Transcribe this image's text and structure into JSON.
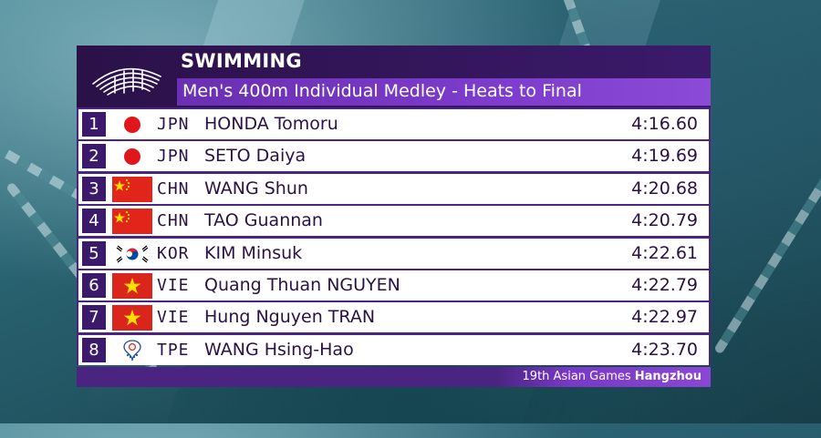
{
  "header": {
    "sport": "SWIMMING",
    "event": "Men's 400m Individual Medley - Heats to Final"
  },
  "results": [
    {
      "rank": "1",
      "flag": "japan-flag",
      "code": "JPN",
      "name": "HONDA Tomoru",
      "time": "4:16.60"
    },
    {
      "rank": "2",
      "flag": "japan-flag",
      "code": "JPN",
      "name": "SETO Daiya",
      "time": "4:19.69"
    },
    {
      "rank": "3",
      "flag": "china-flag",
      "code": "CHN",
      "name": "WANG Shun",
      "time": "4:20.68"
    },
    {
      "rank": "4",
      "flag": "china-flag",
      "code": "CHN",
      "name": "TAO Guannan",
      "time": "4:20.79"
    },
    {
      "rank": "5",
      "flag": "korea-flag",
      "code": "KOR",
      "name": "KIM Minsuk",
      "time": "4:22.61"
    },
    {
      "rank": "6",
      "flag": "vietnam-flag",
      "code": "VIE",
      "name": "Quang Thuan NGUYEN",
      "time": "4:22.79"
    },
    {
      "rank": "7",
      "flag": "vietnam-flag",
      "code": "VIE",
      "name": "Hung Nguyen TRAN",
      "time": "4:22.97"
    },
    {
      "rank": "8",
      "flag": "chinese-taipei-olympic-flag",
      "code": "TPE",
      "name": "WANG Hsing-Hao",
      "time": "4:23.70"
    }
  ],
  "footer": {
    "games_prefix": "19th Asian Games",
    "games_city": "Hangzhou"
  },
  "colors": {
    "board_dark": "#3b1a6b",
    "board_accent": "#7d3ccc",
    "row_bg": "#ffffff",
    "text": "#2a1245"
  }
}
